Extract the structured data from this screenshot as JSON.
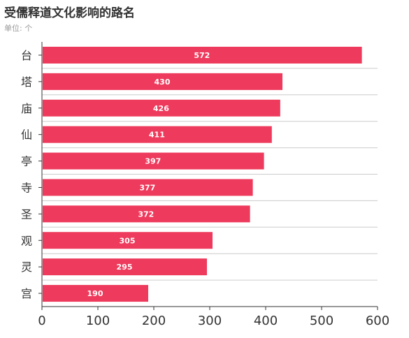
{
  "chart_data": {
    "type": "bar",
    "orientation": "horizontal",
    "title": "受儒释道文化影响的路名",
    "subtitle": "单位: 个",
    "categories": [
      "台",
      "塔",
      "庙",
      "仙",
      "亭",
      "寺",
      "圣",
      "观",
      "灵",
      "宫"
    ],
    "values": [
      572,
      430,
      426,
      411,
      397,
      377,
      372,
      305,
      295,
      190
    ],
    "xlim": [
      0,
      600
    ],
    "xticks": [
      "0",
      "100",
      "200",
      "300",
      "400",
      "500",
      "600"
    ],
    "grid": "horizontal",
    "bar_color": "#ee3a5c"
  }
}
